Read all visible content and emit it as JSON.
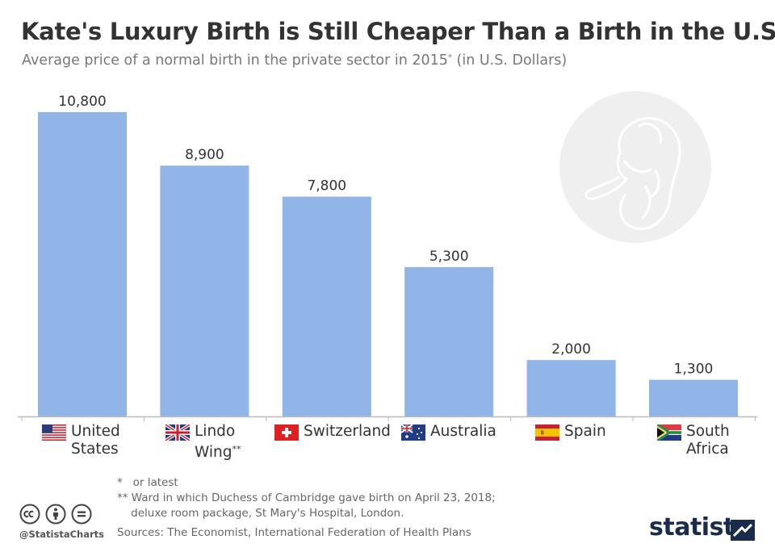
{
  "header": {
    "title": "Kate's Luxury Birth is Still Cheaper Than a Birth in the U.S.",
    "subtitle_main": "Average price of a normal birth in the private sector in 2015",
    "subtitle_mark": "*",
    "subtitle_unit": " (in U.S. Dollars)"
  },
  "chart_data": {
    "type": "bar",
    "categories": [
      "United States",
      "Lindo Wing**",
      "Switzerland",
      "Australia",
      "Spain",
      "South Africa"
    ],
    "values": [
      10800,
      8900,
      7800,
      5300,
      2000,
      1300
    ],
    "value_labels": [
      "10,800",
      "8,900",
      "7,800",
      "5,300",
      "2,000",
      "1,300"
    ],
    "ylim": [
      0,
      12200
    ],
    "grid": false,
    "legend": "none",
    "bar_color": "#91b5e6",
    "axis_color": "#bbbbbb"
  },
  "category_labels": [
    {
      "line1": "United",
      "line2": "States",
      "sup": "",
      "flag": "us-flag-icon"
    },
    {
      "line1": "Lindo",
      "line2": "Wing",
      "sup": "**",
      "flag": "uk-flag-icon"
    },
    {
      "line1": "Switzerland",
      "line2": "",
      "sup": "",
      "flag": "switzerland-flag-icon"
    },
    {
      "line1": "Australia",
      "line2": "",
      "sup": "",
      "flag": "australia-flag-icon"
    },
    {
      "line1": "Spain",
      "line2": "",
      "sup": "",
      "flag": "spain-flag-icon"
    },
    {
      "line1": "South",
      "line2": "Africa",
      "sup": "",
      "flag": "south-africa-flag-icon"
    }
  ],
  "footnotes": {
    "note1": "*   or latest",
    "note2": "** Ward in which Duchess of Cambridge gave birth on April 23, 2018;",
    "note3": "    deluxe room package, St Mary's Hospital, London."
  },
  "footer": {
    "source": "Sources: The Economist, International Federation of Health Plans",
    "handle": "@StatistaCharts",
    "brand": "statista"
  },
  "decorations": {
    "illustration": "baby-icon",
    "license_icons": [
      "cc-icon",
      "attribution-icon",
      "no-derivatives-icon"
    ]
  }
}
